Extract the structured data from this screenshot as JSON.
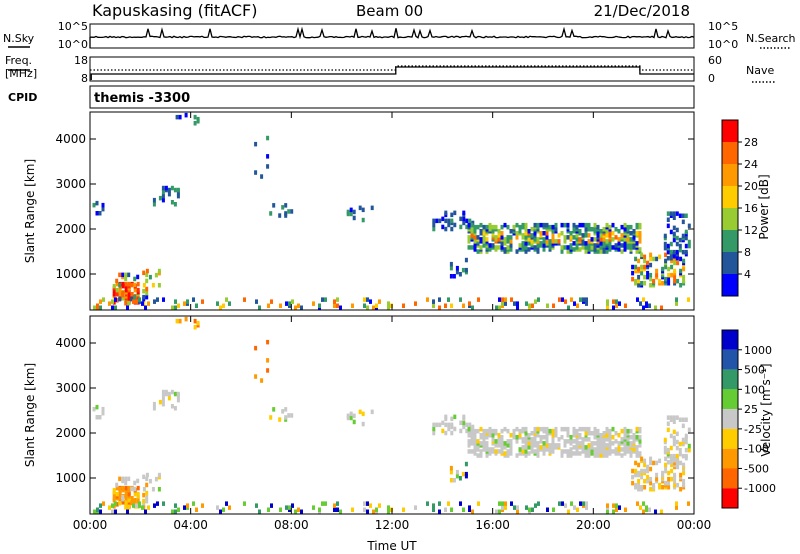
{
  "header": {
    "station": "Kapuskasing (fitACF)",
    "beam": "Beam 00",
    "date": "21/Dec/2018"
  },
  "aux_panels": {
    "nsky_label": "N.Sky",
    "nsearch_label": "N.Search",
    "nsky_ticks_left": [
      "10^5",
      "10^0"
    ],
    "nsky_ticks_right": [
      "10^5",
      "10^0"
    ],
    "freq_label": "Freq.",
    "freq_unit": "[MHz]",
    "freq_ticks": [
      "18",
      "8"
    ],
    "nave_label": "Nave",
    "nave_ticks": [
      "60",
      "0"
    ],
    "cpid_label": "CPID",
    "cpid_text": "themis -3300"
  },
  "chart_data": [
    {
      "type": "heatmap",
      "title": "",
      "ylabel": "Slant Range [km]",
      "xlabel": "",
      "x_ticks": [
        "00:00",
        "04:00",
        "08:00",
        "12:00",
        "16:00",
        "20:00",
        "00:00"
      ],
      "x_hours": [
        0,
        4,
        8,
        12,
        16,
        20,
        24
      ],
      "y_ticks": [
        1000,
        2000,
        3000,
        4000
      ],
      "ylim": [
        200,
        4600
      ],
      "colorbar": {
        "label": "Power [dB]",
        "ticks": [
          "28",
          "24",
          "20",
          "16",
          "12",
          "8",
          "4"
        ],
        "colors": [
          "#ff0000",
          "#ff6600",
          "#ff9900",
          "#ffcc00",
          "#99cc33",
          "#339966",
          "#225599",
          "#0000ff"
        ]
      }
    },
    {
      "type": "heatmap",
      "title": "",
      "ylabel": "Slant Range [km]",
      "xlabel": "Time UT",
      "x_ticks": [
        "00:00",
        "04:00",
        "08:00",
        "12:00",
        "16:00",
        "20:00",
        "00:00"
      ],
      "x_hours": [
        0,
        4,
        8,
        12,
        16,
        20,
        24
      ],
      "y_ticks": [
        1000,
        2000,
        3000,
        4000
      ],
      "ylim": [
        200,
        4600
      ],
      "colorbar": {
        "label": "Velocity [m s⁻¹]",
        "ticks": [
          "1000",
          "500",
          "100",
          "25",
          "-25",
          "-100",
          "-500",
          "-1000"
        ],
        "colors": [
          "#0000cc",
          "#2255aa",
          "#339966",
          "#66cc33",
          "#c8c8c8",
          "#ffcc00",
          "#ff9900",
          "#ff6600",
          "#ff0000"
        ]
      }
    }
  ]
}
